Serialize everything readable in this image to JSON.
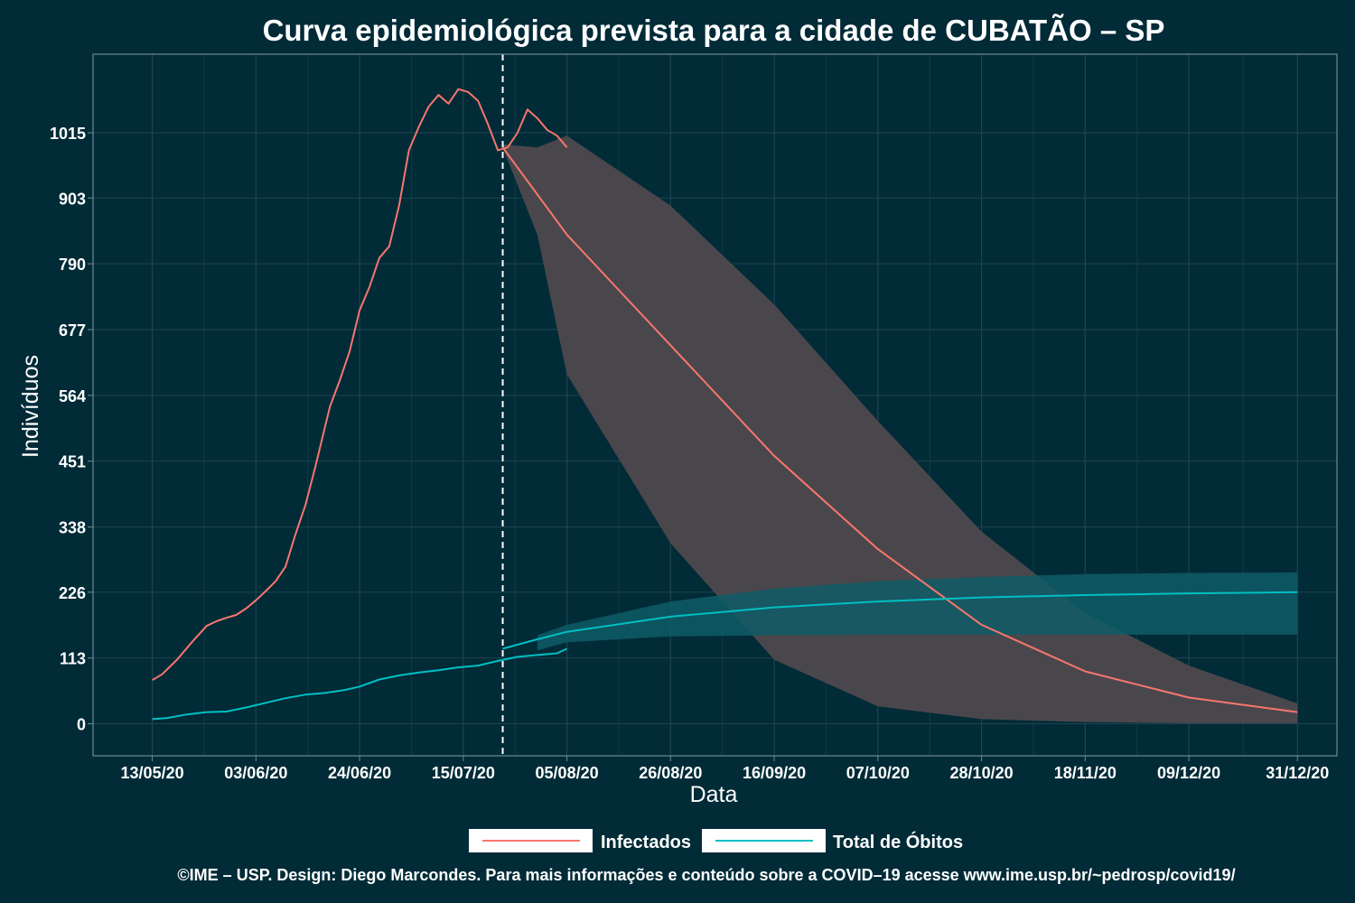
{
  "chart_data": {
    "type": "line",
    "title": "Curva epidemiológica prevista para a cidade de CUBATÃO – SP",
    "xlabel": "Data",
    "ylabel": "Indivíduos",
    "x_tick_labels": [
      "13/05/20",
      "03/06/20",
      "24/06/20",
      "15/07/20",
      "05/08/20",
      "26/08/20",
      "16/09/20",
      "07/10/20",
      "28/10/20",
      "18/11/20",
      "09/12/20",
      "31/12/20"
    ],
    "x_ticks": [
      "2020-05-13",
      "2020-06-03",
      "2020-06-24",
      "2020-07-15",
      "2020-08-05",
      "2020-08-26",
      "2020-09-16",
      "2020-10-07",
      "2020-10-28",
      "2020-11-18",
      "2020-12-09",
      "2020-12-31"
    ],
    "y_ticks": [
      0,
      113,
      226,
      338,
      451,
      564,
      677,
      790,
      903,
      1015
    ],
    "xlim": [
      "2020-05-01",
      "2021-01-08"
    ],
    "ylim": [
      -55,
      1150
    ],
    "grid": true,
    "legend_position": "bottom",
    "forecast_start": "2020-07-23",
    "series": [
      {
        "name": "Infectados",
        "color": "#f8766d",
        "observed": [
          [
            "2020-05-13",
            75
          ],
          [
            "2020-05-15",
            85
          ],
          [
            "2020-05-18",
            110
          ],
          [
            "2020-05-21",
            140
          ],
          [
            "2020-05-24",
            168
          ],
          [
            "2020-05-26",
            176
          ],
          [
            "2020-05-28",
            182
          ],
          [
            "2020-05-30",
            187
          ],
          [
            "2020-06-01",
            198
          ],
          [
            "2020-06-03",
            212
          ],
          [
            "2020-06-05",
            228
          ],
          [
            "2020-06-07",
            245
          ],
          [
            "2020-06-09",
            270
          ],
          [
            "2020-06-11",
            325
          ],
          [
            "2020-06-13",
            375
          ],
          [
            "2020-06-15",
            440
          ],
          [
            "2020-06-17",
            510
          ],
          [
            "2020-06-18",
            545
          ],
          [
            "2020-06-20",
            590
          ],
          [
            "2020-06-22",
            640
          ],
          [
            "2020-06-24",
            710
          ],
          [
            "2020-06-26",
            750
          ],
          [
            "2020-06-28",
            800
          ],
          [
            "2020-06-30",
            820
          ],
          [
            "2020-07-02",
            890
          ],
          [
            "2020-07-04",
            985
          ],
          [
            "2020-07-06",
            1025
          ],
          [
            "2020-07-08",
            1060
          ],
          [
            "2020-07-10",
            1080
          ],
          [
            "2020-07-12",
            1065
          ],
          [
            "2020-07-14",
            1090
          ],
          [
            "2020-07-16",
            1085
          ],
          [
            "2020-07-18",
            1070
          ],
          [
            "2020-07-20",
            1030
          ],
          [
            "2020-07-22",
            985
          ],
          [
            "2020-07-24",
            990
          ],
          [
            "2020-07-26",
            1015
          ],
          [
            "2020-07-28",
            1055
          ],
          [
            "2020-07-30",
            1040
          ],
          [
            "2020-08-01",
            1020
          ],
          [
            "2020-08-03",
            1010
          ],
          [
            "2020-08-05",
            990
          ]
        ],
        "forecast": [
          [
            "2020-07-23",
            990
          ],
          [
            "2020-08-05",
            840
          ],
          [
            "2020-08-26",
            650
          ],
          [
            "2020-09-16",
            460
          ],
          [
            "2020-10-07",
            300
          ],
          [
            "2020-10-28",
            170
          ],
          [
            "2020-11-18",
            90
          ],
          [
            "2020-12-09",
            45
          ],
          [
            "2020-12-31",
            20
          ]
        ],
        "band_upper": [
          [
            "2020-07-23",
            995
          ],
          [
            "2020-07-30",
            990
          ],
          [
            "2020-08-05",
            1010
          ],
          [
            "2020-08-26",
            890
          ],
          [
            "2020-09-16",
            720
          ],
          [
            "2020-10-07",
            520
          ],
          [
            "2020-10-28",
            330
          ],
          [
            "2020-11-18",
            190
          ],
          [
            "2020-12-09",
            100
          ],
          [
            "2020-12-31",
            35
          ]
        ],
        "band_lower": [
          [
            "2020-07-23",
            990
          ],
          [
            "2020-07-30",
            840
          ],
          [
            "2020-08-05",
            600
          ],
          [
            "2020-08-26",
            310
          ],
          [
            "2020-09-16",
            110
          ],
          [
            "2020-10-07",
            30
          ],
          [
            "2020-10-28",
            8
          ],
          [
            "2020-11-18",
            3
          ],
          [
            "2020-12-09",
            1
          ],
          [
            "2020-12-31",
            1
          ]
        ]
      },
      {
        "name": "Total de Óbitos",
        "color": "#00bfc4",
        "observed": [
          [
            "2020-05-13",
            8
          ],
          [
            "2020-05-16",
            10
          ],
          [
            "2020-05-20",
            16
          ],
          [
            "2020-05-24",
            20
          ],
          [
            "2020-05-28",
            21
          ],
          [
            "2020-06-01",
            28
          ],
          [
            "2020-06-05",
            36
          ],
          [
            "2020-06-09",
            44
          ],
          [
            "2020-06-13",
            50
          ],
          [
            "2020-06-17",
            53
          ],
          [
            "2020-06-21",
            58
          ],
          [
            "2020-06-24",
            64
          ],
          [
            "2020-06-28",
            76
          ],
          [
            "2020-07-02",
            83
          ],
          [
            "2020-07-06",
            88
          ],
          [
            "2020-07-10",
            92
          ],
          [
            "2020-07-14",
            97
          ],
          [
            "2020-07-18",
            100
          ],
          [
            "2020-07-22",
            108
          ],
          [
            "2020-07-26",
            115
          ],
          [
            "2020-07-30",
            118
          ],
          [
            "2020-08-03",
            121
          ],
          [
            "2020-08-05",
            129
          ]
        ],
        "forecast": [
          [
            "2020-07-23",
            129
          ],
          [
            "2020-07-30",
            145
          ],
          [
            "2020-08-05",
            158
          ],
          [
            "2020-08-26",
            184
          ],
          [
            "2020-09-16",
            200
          ],
          [
            "2020-10-07",
            210
          ],
          [
            "2020-10-28",
            217
          ],
          [
            "2020-11-18",
            221
          ],
          [
            "2020-12-09",
            224
          ],
          [
            "2020-12-31",
            226
          ]
        ],
        "band_upper": [
          [
            "2020-07-30",
            152
          ],
          [
            "2020-08-05",
            170
          ],
          [
            "2020-08-26",
            210
          ],
          [
            "2020-09-16",
            232
          ],
          [
            "2020-10-07",
            245
          ],
          [
            "2020-10-28",
            252
          ],
          [
            "2020-11-18",
            257
          ],
          [
            "2020-12-09",
            259
          ],
          [
            "2020-12-31",
            260
          ]
        ],
        "band_lower": [
          [
            "2020-07-30",
            126
          ],
          [
            "2020-08-05",
            140
          ],
          [
            "2020-08-26",
            150
          ],
          [
            "2020-09-16",
            152
          ],
          [
            "2020-10-07",
            153
          ],
          [
            "2020-10-28",
            153
          ],
          [
            "2020-11-18",
            153
          ],
          [
            "2020-12-09",
            153
          ],
          [
            "2020-12-31",
            153
          ]
        ]
      }
    ]
  },
  "legend": [
    {
      "label": "Infectados",
      "color": "#f8766d"
    },
    {
      "label": "Total de Óbitos",
      "color": "#00bfc4"
    }
  ],
  "footer": {
    "caption": "©IME – USP. Design: Diego Marcondes. Para mais informações e conteúdo sobre a COVID–19 acesse www.ime.usp.br/~pedrosp/covid19/"
  },
  "colors": {
    "background": "#002b37",
    "forecast_band": "#4a474c",
    "deaths_band": "#0e5c66"
  }
}
